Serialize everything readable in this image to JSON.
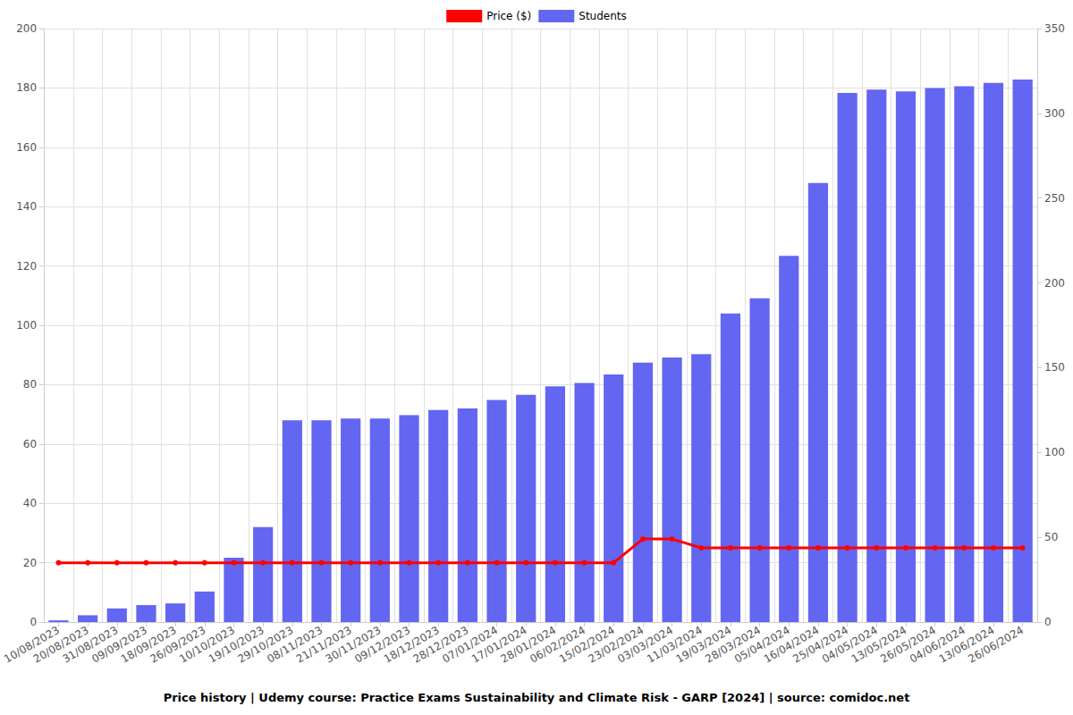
{
  "chart_data": {
    "type": "bar",
    "title": "Price history | Udemy course: Practice Exams Sustainability and Climate Risk - GARP [2024] | source: comidoc.net",
    "categories": [
      "10/08/2023",
      "20/08/2023",
      "31/08/2023",
      "09/09/2023",
      "18/09/2023",
      "26/09/2023",
      "10/10/2023",
      "19/10/2023",
      "29/10/2023",
      "08/11/2023",
      "21/11/2023",
      "30/11/2023",
      "09/12/2023",
      "18/12/2023",
      "28/12/2023",
      "07/01/2024",
      "17/01/2024",
      "28/01/2024",
      "06/02/2024",
      "15/02/2024",
      "23/02/2024",
      "03/03/2024",
      "11/03/2024",
      "19/03/2024",
      "28/03/2024",
      "05/04/2024",
      "16/04/2024",
      "25/04/2024",
      "04/05/2024",
      "13/05/2024",
      "26/05/2024",
      "04/06/2024",
      "13/06/2024",
      "26/06/2024"
    ],
    "series": [
      {
        "name": "Price ($)",
        "type": "line",
        "color": "#ff0000",
        "marker": "circle",
        "values": [
          19.99,
          19.99,
          19.99,
          19.99,
          19.99,
          19.99,
          19.99,
          19.99,
          19.99,
          19.99,
          19.99,
          19.99,
          19.99,
          19.99,
          19.99,
          19.99,
          19.99,
          19.99,
          19.99,
          19.99,
          27.99,
          27.99,
          24.99,
          24.99,
          24.99,
          24.99,
          24.99,
          24.99,
          24.99,
          24.99,
          24.99,
          24.99,
          24.99,
          24.99
        ]
      },
      {
        "name": "Students",
        "type": "bar",
        "color": "#6366f1",
        "axis": "y2",
        "values": [
          1,
          4,
          8,
          10,
          11,
          18,
          38,
          56,
          119,
          119,
          120,
          120,
          122,
          125,
          126,
          131,
          134,
          139,
          141,
          146,
          153,
          156,
          158,
          182,
          191,
          216,
          259,
          312,
          314,
          313,
          315,
          316,
          318,
          320
        ]
      }
    ],
    "ylim": [
      0,
      200
    ],
    "yticks": [
      0,
      20,
      40,
      60,
      80,
      100,
      120,
      140,
      160,
      180,
      200
    ],
    "y2lim": [
      0,
      350
    ],
    "y2ticks": [
      0,
      50,
      100,
      150,
      200,
      250,
      300,
      350
    ],
    "grid": true,
    "legend": "top"
  }
}
